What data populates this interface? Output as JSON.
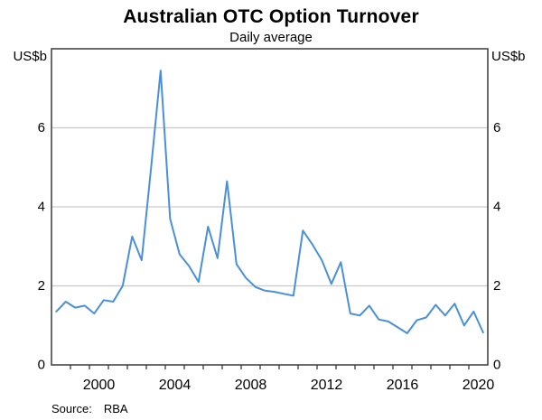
{
  "chart_data": {
    "type": "line",
    "title": "Australian OTC Option Turnover",
    "subtitle": "Daily average",
    "y_unit": "US$b",
    "xlim": [
      1998,
      2021
    ],
    "ylim": [
      0,
      8
    ],
    "x_tick_interval": 1,
    "x_label_years": [
      2000,
      2004,
      2008,
      2012,
      2016,
      2020
    ],
    "x_label_offset": 0.5,
    "y_gridlines": [
      2,
      4,
      6
    ],
    "y_tick_labels": [
      0,
      2,
      4,
      6
    ],
    "grid_on": true,
    "legend": "none",
    "colors": {
      "line": "#4a90d8",
      "grid": "#c9c9c9",
      "frame": "#3a3a3a",
      "text": "#000000"
    },
    "series": [
      {
        "name": "OTC option turnover (daily average, US$b)",
        "x": [
          1998.25,
          1998.75,
          1999.25,
          1999.75,
          2000.25,
          2000.75,
          2001.25,
          2001.75,
          2002.25,
          2002.75,
          2003.25,
          2003.75,
          2004.25,
          2004.75,
          2005.25,
          2005.75,
          2006.25,
          2006.75,
          2007.25,
          2007.75,
          2008.25,
          2008.75,
          2009.25,
          2009.75,
          2010.25,
          2010.75,
          2011.25,
          2011.75,
          2012.25,
          2012.75,
          2013.25,
          2013.75,
          2014.25,
          2014.75,
          2015.25,
          2015.75,
          2016.25,
          2016.75,
          2017.25,
          2017.75,
          2018.25,
          2018.75,
          2019.25,
          2019.75,
          2020.25,
          2020.75
        ],
        "values": [
          1.35,
          1.6,
          1.45,
          1.5,
          1.3,
          1.64,
          1.6,
          2.0,
          3.25,
          2.65,
          5.0,
          7.45,
          3.7,
          2.8,
          2.5,
          2.1,
          3.5,
          2.7,
          4.65,
          2.55,
          2.2,
          1.97,
          1.88,
          1.85,
          1.8,
          1.75,
          3.4,
          3.05,
          2.65,
          2.05,
          2.6,
          1.3,
          1.25,
          1.5,
          1.15,
          1.1,
          0.95,
          0.8,
          1.13,
          1.2,
          1.52,
          1.25,
          1.55,
          1.0,
          1.35,
          0.82
        ]
      }
    ]
  },
  "source": {
    "label": "Source:",
    "value": "RBA"
  }
}
